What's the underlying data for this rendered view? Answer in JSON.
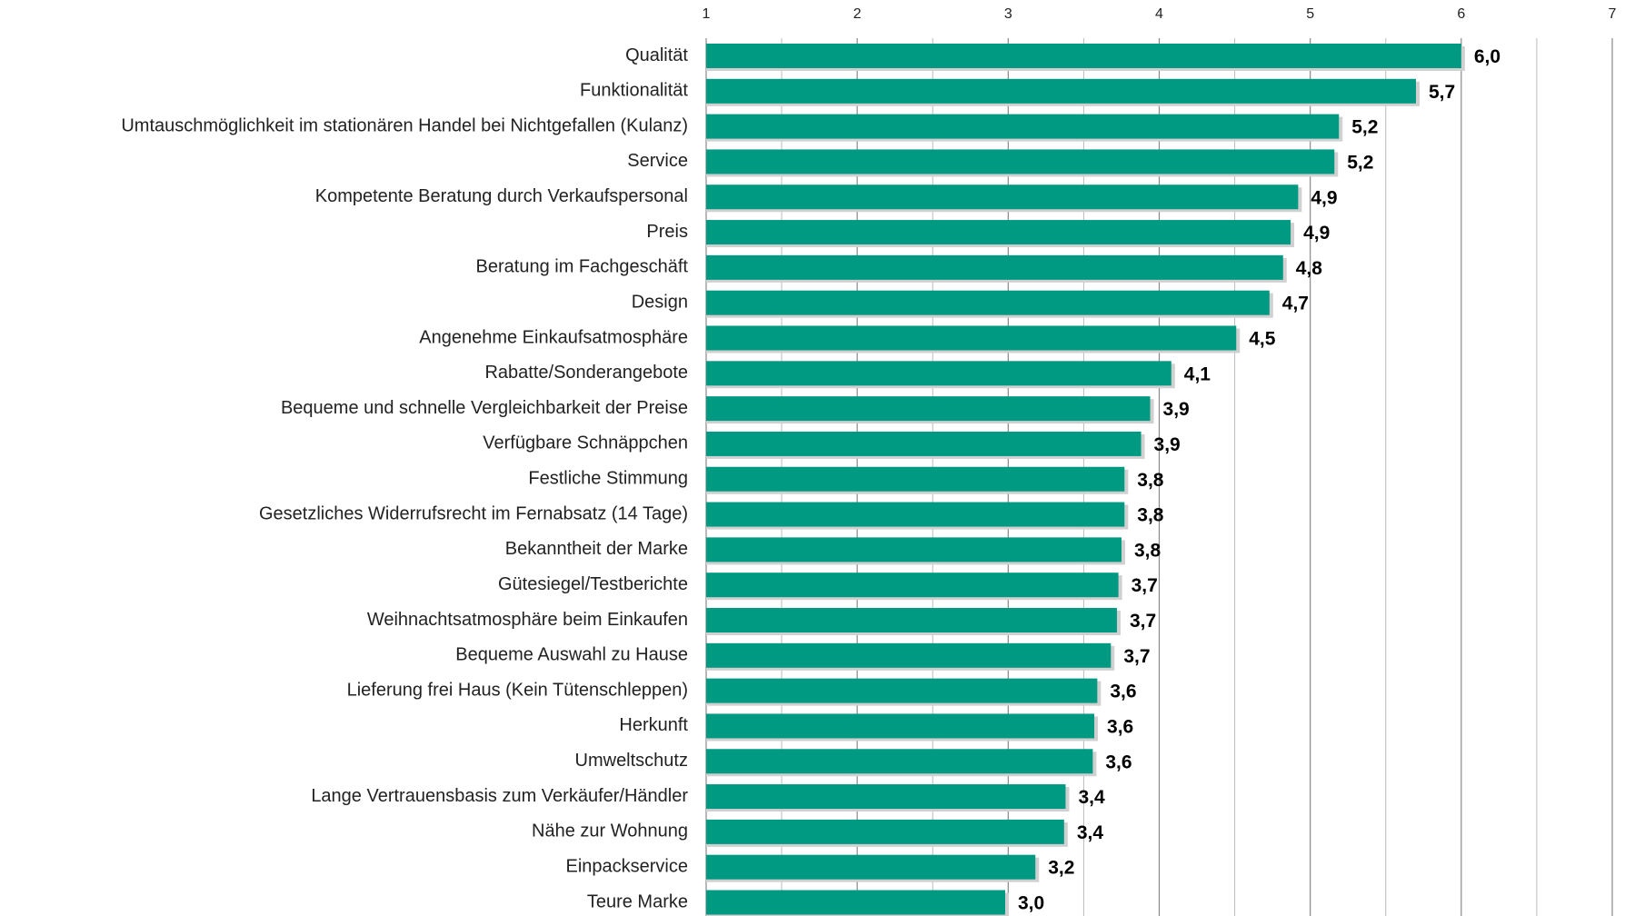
{
  "chart_data": {
    "type": "barh",
    "categories": [
      "Qualität",
      "Funktionalität",
      "Umtauschmöglichkeit im stationären Handel bei Nichtgefallen (Kulanz)",
      "Service",
      "Kompetente Beratung durch Verkaufspersonal",
      "Preis",
      "Beratung im Fachgeschäft",
      "Design",
      "Angenehme Einkaufsatmosphäre",
      "Rabatte/Sonderangebote",
      "Bequeme und schnelle Vergleichbarkeit der Preise",
      "Verfügbare Schnäppchen",
      "Festliche Stimmung",
      "Gesetzliches Widerrufsrecht im Fernabsatz (14 Tage)",
      "Bekanntheit der Marke",
      "Gütesiegel/Testberichte",
      "Weihnachtsatmosphäre beim Einkaufen",
      "Bequeme Auswahl zu Hause",
      "Lieferung frei Haus (Kein Tütenschleppen)",
      "Herkunft",
      "Umweltschutz",
      "Lange Vertrauensbasis zum Verkäufer/Händler",
      "Nähe zur Wohnung",
      "Einpackservice",
      "Teure Marke"
    ],
    "values": [
      6.0,
      5.7,
      5.19,
      5.16,
      4.92,
      4.87,
      4.82,
      4.73,
      4.51,
      4.08,
      3.94,
      3.88,
      3.77,
      3.77,
      3.75,
      3.73,
      3.72,
      3.68,
      3.59,
      3.57,
      3.56,
      3.38,
      3.37,
      3.18,
      2.98
    ],
    "value_labels": [
      "6,0",
      "5,7",
      "5,2",
      "5,2",
      "4,9",
      "4,9",
      "4,8",
      "4,7",
      "4,5",
      "4,1",
      "3,9",
      "3,9",
      "3,8",
      "3,8",
      "3,8",
      "3,7",
      "3,7",
      "3,7",
      "3,6",
      "3,6",
      "3,6",
      "3,4",
      "3,4",
      "3,2",
      "3,0"
    ],
    "color": "#009982",
    "xlim": [
      1,
      7
    ],
    "xticks": [
      1,
      2,
      3,
      4,
      5,
      6,
      7
    ],
    "grid": true,
    "minor_grid": true
  }
}
